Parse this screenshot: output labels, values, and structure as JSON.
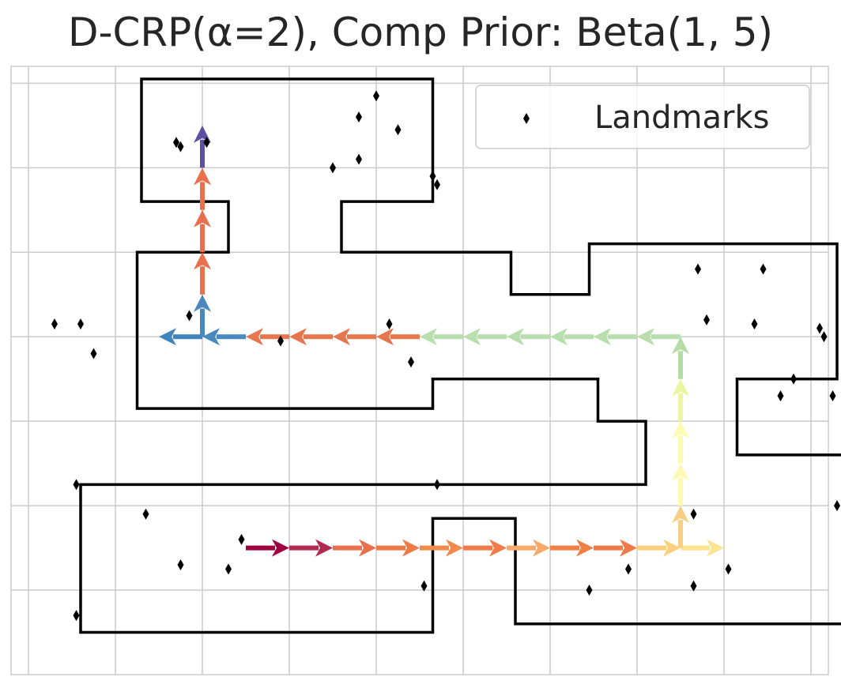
{
  "chart_data": {
    "type": "scatter",
    "title": "D-CRP(α=2), Comp Prior: Beta(1, 5)",
    "xlabel": "",
    "ylabel": "",
    "xlim": [
      -2.4,
      16.4
    ],
    "ylim": [
      -1.0,
      13.4
    ],
    "grid": true,
    "tick_labels_visible": false,
    "legend": {
      "position": "top-right",
      "entries": [
        "Landmarks"
      ]
    },
    "landmarks": {
      "name": "Landmarks",
      "marker": "diamond",
      "color": "#000000",
      "points": [
        [
          1.4,
          11.6
        ],
        [
          1.5,
          11.5
        ],
        [
          2.1,
          11.6
        ],
        [
          6.0,
          12.7
        ],
        [
          5.6,
          12.2
        ],
        [
          6.5,
          11.9
        ],
        [
          5.0,
          11.0
        ],
        [
          5.6,
          11.2
        ],
        [
          7.3,
          10.8
        ],
        [
          7.4,
          10.6
        ],
        [
          -1.4,
          7.3
        ],
        [
          -0.8,
          7.3
        ],
        [
          -0.5,
          6.6
        ],
        [
          1.7,
          7.5
        ],
        [
          3.8,
          6.9
        ],
        [
          6.3,
          7.3
        ],
        [
          6.8,
          6.4
        ],
        [
          13.4,
          8.6
        ],
        [
          14.9,
          8.6
        ],
        [
          13.6,
          7.4
        ],
        [
          14.7,
          7.3
        ],
        [
          16.2,
          7.2
        ],
        [
          16.3,
          7.0
        ],
        [
          15.6,
          6.0
        ],
        [
          15.3,
          5.6
        ],
        [
          16.5,
          5.6
        ],
        [
          -0.9,
          3.5
        ],
        [
          0.7,
          2.8
        ],
        [
          1.5,
          1.6
        ],
        [
          2.6,
          1.5
        ],
        [
          2.9,
          2.2
        ],
        [
          7.4,
          3.5
        ],
        [
          7.1,
          1.1
        ],
        [
          -0.9,
          0.4
        ],
        [
          13.3,
          2.8
        ],
        [
          16.6,
          3.0
        ],
        [
          11.8,
          1.5
        ],
        [
          10.9,
          1.0
        ],
        [
          13.3,
          1.1
        ],
        [
          14.1,
          1.5
        ]
      ]
    },
    "trajectory_segments": [
      {
        "from": [
          3,
          2
        ],
        "to": [
          4,
          2
        ],
        "color": "#9e0142"
      },
      {
        "from": [
          4,
          2
        ],
        "to": [
          5,
          2
        ],
        "color": "#b2294f"
      },
      {
        "from": [
          5,
          2
        ],
        "to": [
          6,
          2
        ],
        "color": "#e8704d"
      },
      {
        "from": [
          6,
          2
        ],
        "to": [
          7,
          2
        ],
        "color": "#ee7a49"
      },
      {
        "from": [
          7,
          2
        ],
        "to": [
          8,
          2
        ],
        "color": "#f18a4a"
      },
      {
        "from": [
          8,
          2
        ],
        "to": [
          9,
          2
        ],
        "color": "#ef7a4a"
      },
      {
        "from": [
          9,
          2
        ],
        "to": [
          10,
          2
        ],
        "color": "#f8a869"
      },
      {
        "from": [
          10,
          2
        ],
        "to": [
          11,
          2
        ],
        "color": "#f08046"
      },
      {
        "from": [
          11,
          2
        ],
        "to": [
          12,
          2
        ],
        "color": "#ee7a49"
      },
      {
        "from": [
          12,
          2
        ],
        "to": [
          13,
          2
        ],
        "color": "#fad07e"
      },
      {
        "from": [
          13,
          2
        ],
        "to": [
          14,
          2
        ],
        "color": "#fce38f"
      },
      {
        "from": [
          13,
          2
        ],
        "to": [
          13,
          3
        ],
        "color": "#f7cf84"
      },
      {
        "from": [
          13,
          3
        ],
        "to": [
          13,
          4
        ],
        "color": "#fff8b4"
      },
      {
        "from": [
          13,
          4
        ],
        "to": [
          13,
          5
        ],
        "color": "#fbfcb2"
      },
      {
        "from": [
          13,
          5
        ],
        "to": [
          13,
          6
        ],
        "color": "#e9f5a1"
      },
      {
        "from": [
          13,
          6
        ],
        "to": [
          13,
          7
        ],
        "color": "#b5dca7"
      },
      {
        "from": [
          13,
          7
        ],
        "to": [
          12,
          7
        ],
        "color": "#b7deac"
      },
      {
        "from": [
          12,
          7
        ],
        "to": [
          11,
          7
        ],
        "color": "#b7deac"
      },
      {
        "from": [
          11,
          7
        ],
        "to": [
          10,
          7
        ],
        "color": "#b7deac"
      },
      {
        "from": [
          10,
          7
        ],
        "to": [
          9,
          7
        ],
        "color": "#b7deac"
      },
      {
        "from": [
          9,
          7
        ],
        "to": [
          8,
          7
        ],
        "color": "#b7deac"
      },
      {
        "from": [
          8,
          7
        ],
        "to": [
          7,
          7
        ],
        "color": "#b7deac"
      },
      {
        "from": [
          7,
          7
        ],
        "to": [
          6,
          7
        ],
        "color": "#e6764e"
      },
      {
        "from": [
          6,
          7
        ],
        "to": [
          5,
          7
        ],
        "color": "#e6764e"
      },
      {
        "from": [
          5,
          7
        ],
        "to": [
          4,
          7
        ],
        "color": "#e6764e"
      },
      {
        "from": [
          4,
          7
        ],
        "to": [
          3,
          7
        ],
        "color": "#e6764e"
      },
      {
        "from": [
          3,
          7
        ],
        "to": [
          2,
          7
        ],
        "color": "#4a87bc"
      },
      {
        "from": [
          2,
          7
        ],
        "to": [
          1,
          7
        ],
        "color": "#3f85bb"
      },
      {
        "from": [
          2,
          7
        ],
        "to": [
          2,
          8
        ],
        "color": "#4a87bc"
      },
      {
        "from": [
          2,
          8
        ],
        "to": [
          2,
          9
        ],
        "color": "#e8704d"
      },
      {
        "from": [
          2,
          9
        ],
        "to": [
          2,
          10
        ],
        "color": "#e8704d"
      },
      {
        "from": [
          2,
          10
        ],
        "to": [
          2,
          11
        ],
        "color": "#e8704d"
      },
      {
        "from": [
          2,
          11
        ],
        "to": [
          2,
          12
        ],
        "color": "#5e4fa2"
      }
    ],
    "environment_outline": [
      [
        -0.8,
        0
      ],
      [
        7.3,
        0
      ],
      [
        7.3,
        2.7
      ],
      [
        9.2,
        2.7
      ],
      [
        9.2,
        0.2
      ],
      [
        17.7,
        0.2
      ],
      [
        17.7,
        4.2
      ],
      [
        14.3,
        4.2
      ],
      [
        14.3,
        6.0
      ],
      [
        16.6,
        6.0
      ],
      [
        16.6,
        9.2
      ],
      [
        10.9,
        9.2
      ],
      [
        10.9,
        8.0
      ],
      [
        9.1,
        8.0
      ],
      [
        9.1,
        9.0
      ],
      [
        5.2,
        9.0
      ],
      [
        5.2,
        10.2
      ],
      [
        7.3,
        10.2
      ],
      [
        7.3,
        13.1
      ],
      [
        0.6,
        13.1
      ],
      [
        0.6,
        10.2
      ],
      [
        2.6,
        10.2
      ],
      [
        2.6,
        9.0
      ],
      [
        0.5,
        9.0
      ],
      [
        0.5,
        5.3
      ],
      [
        7.3,
        5.3
      ],
      [
        7.3,
        6.0
      ],
      [
        11.1,
        6.0
      ],
      [
        11.1,
        5.0
      ],
      [
        12.2,
        5.0
      ],
      [
        12.2,
        3.5
      ],
      [
        7.3,
        3.5
      ],
      [
        7.3,
        3.5
      ],
      [
        -0.8,
        3.5
      ]
    ]
  }
}
